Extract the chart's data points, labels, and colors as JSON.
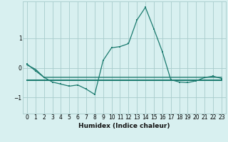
{
  "title": "",
  "xlabel": "Humidex (Indice chaleur)",
  "bg_color": "#d8f0f0",
  "grid_color": "#a8cccc",
  "line_color": "#1a7a6e",
  "xlim": [
    -0.5,
    23.5
  ],
  "ylim": [
    -1.55,
    2.25
  ],
  "yticks": [
    -1,
    0,
    1
  ],
  "xticks": [
    0,
    1,
    2,
    3,
    4,
    5,
    6,
    7,
    8,
    9,
    10,
    11,
    12,
    13,
    14,
    15,
    16,
    17,
    18,
    19,
    20,
    21,
    22,
    23
  ],
  "x": [
    0,
    1,
    2,
    3,
    4,
    5,
    6,
    7,
    8,
    9,
    10,
    11,
    12,
    13,
    14,
    15,
    16,
    17,
    18,
    19,
    20,
    21,
    22,
    23
  ],
  "y_main": [
    0.13,
    -0.1,
    -0.32,
    -0.48,
    -0.55,
    -0.62,
    -0.58,
    -0.72,
    -0.9,
    0.25,
    0.68,
    0.72,
    0.82,
    1.62,
    2.05,
    1.32,
    0.55,
    -0.4,
    -0.48,
    -0.5,
    -0.44,
    -0.33,
    -0.28,
    -0.36
  ],
  "y_flat1": [
    0.1,
    -0.05,
    -0.32,
    -0.32,
    -0.32,
    -0.32,
    -0.32,
    -0.32,
    -0.32,
    -0.32,
    -0.32,
    -0.32,
    -0.32,
    -0.32,
    -0.32,
    -0.32,
    -0.32,
    -0.32,
    -0.32,
    -0.32,
    -0.32,
    -0.32,
    -0.32,
    -0.32
  ],
  "y_flat2": [
    -0.42,
    -0.42,
    -0.42,
    -0.42,
    -0.42,
    -0.42,
    -0.42,
    -0.42,
    -0.42,
    -0.42,
    -0.42,
    -0.42,
    -0.42,
    -0.42,
    -0.42,
    -0.42,
    -0.42,
    -0.42,
    -0.42,
    -0.42,
    -0.42,
    -0.42,
    -0.42,
    -0.42
  ],
  "marker_size": 2.0,
  "linewidth": 0.9,
  "tick_fontsize": 5.5,
  "label_fontsize": 6.5
}
